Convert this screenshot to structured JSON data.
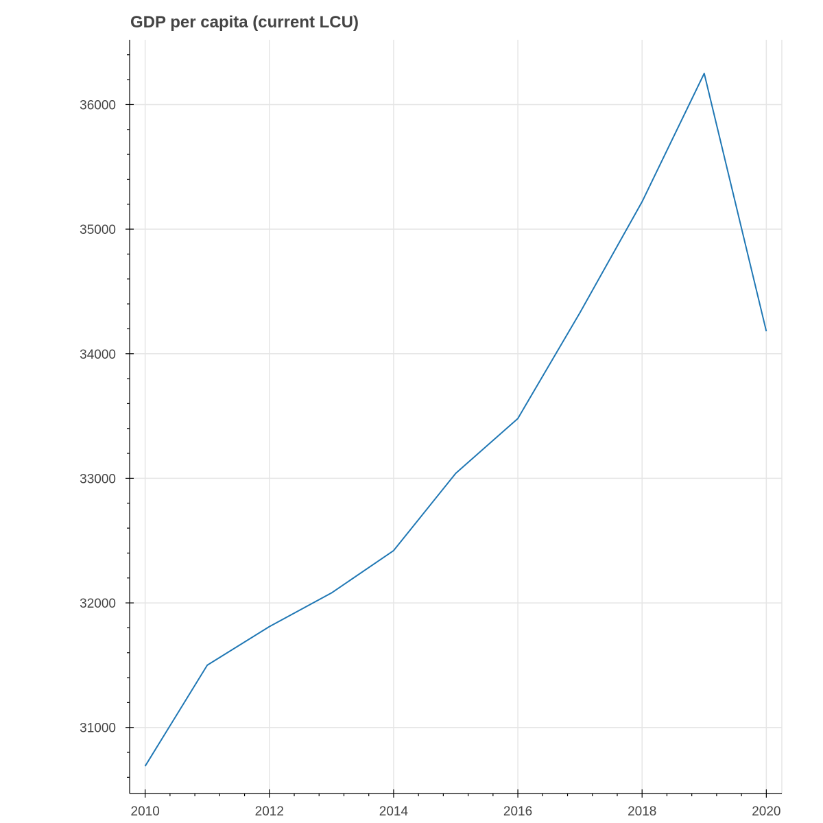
{
  "chart_data": {
    "type": "line",
    "title": "GDP per capita (current LCU)",
    "xlabel": "",
    "ylabel": "",
    "xlim": [
      2009.75,
      2020.25
    ],
    "ylim": [
      30470,
      36520
    ],
    "x_ticks": [
      2010,
      2012,
      2014,
      2016,
      2018,
      2020
    ],
    "x_tick_labels": [
      "2010",
      "2012",
      "2014",
      "2016",
      "2018",
      "2020"
    ],
    "y_ticks": [
      31000,
      32000,
      33000,
      34000,
      35000,
      36000
    ],
    "y_tick_labels": [
      "31000",
      "32000",
      "33000",
      "34000",
      "35000",
      "36000"
    ],
    "grid": true,
    "line_color": "#1f77b4",
    "series": [
      {
        "x": [
          2010,
          2011,
          2012,
          2013,
          2014,
          2015,
          2016,
          2017,
          2018,
          2019,
          2020
        ],
        "values": [
          30690,
          31500,
          31810,
          32080,
          32420,
          33040,
          33480,
          34330,
          35220,
          36250,
          34180
        ]
      }
    ]
  }
}
